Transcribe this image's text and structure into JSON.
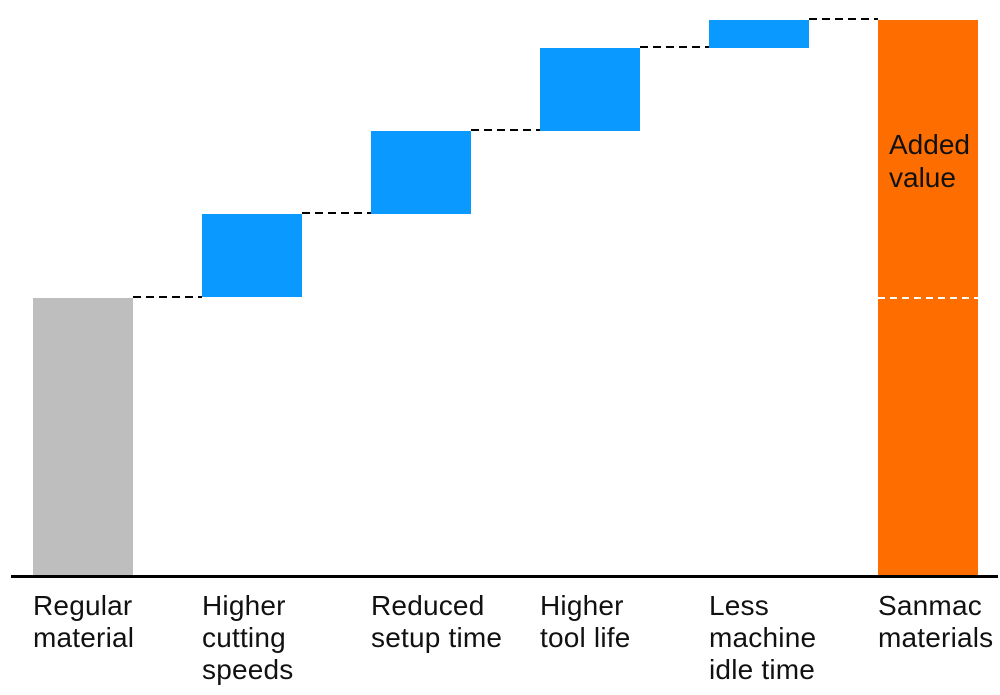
{
  "chart_data": {
    "type": "bar",
    "subtype": "waterfall",
    "title": "",
    "xlabel": "",
    "ylabel": "",
    "categories": [
      "Regular material",
      "Higher cutting speeds",
      "Reduced setup time",
      "Higher tool life",
      "Less machine idle time",
      "Sanmac materials"
    ],
    "values": [
      100,
      30,
      30,
      30,
      10,
      200
    ],
    "roles": [
      "base",
      "increment",
      "increment",
      "increment",
      "increment",
      "total"
    ],
    "ylim": [
      0,
      200
    ],
    "grid": false,
    "legend": false,
    "axis_ticks": "none (no numeric axis shown)",
    "annotation": {
      "text": "Added value",
      "target_category": "Sanmac materials"
    },
    "colors": {
      "base": "#BEBEBE",
      "increment": "#0A99FF",
      "total": "#FE6D00",
      "connector": "#000000",
      "total_split_line": "#FFFFFF",
      "axis": "#000000",
      "text": "#111111",
      "background": "#FFFFFF"
    },
    "total_split_line_level": 100,
    "connector_style": "black dashed lines linking each bar top to the next bar bottom"
  }
}
